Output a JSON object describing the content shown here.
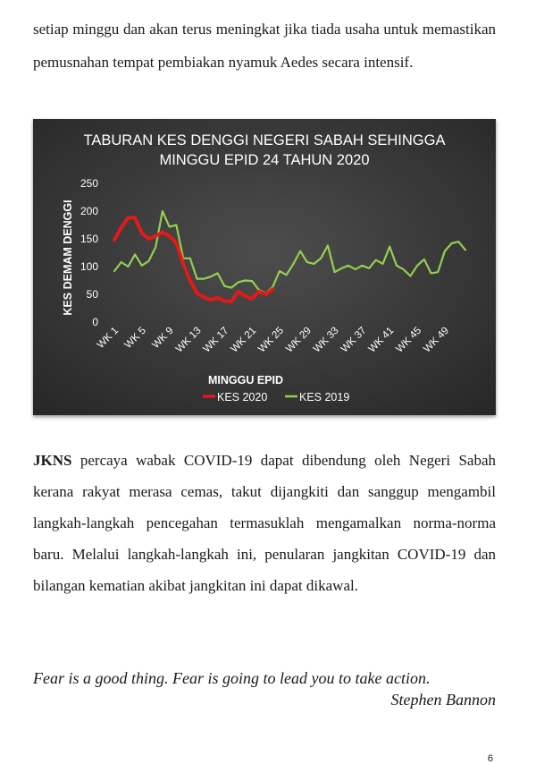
{
  "paragraph1": "setiap minggu dan akan terus meningkat jika tiada usaha untuk memastikan pemusnahan tempat pembiakan nyamuk Aedes secara intensif.",
  "paragraph2": {
    "org": "JKNS",
    "text": " percaya wabak COVID-19 dapat dibendung oleh Negeri Sabah kerana rakyat merasa cemas, takut dijangkiti dan sanggup mengambil langkah-langkah pencegahan termasuklah mengamalkan norma-norma baru.  Melalui langkah-langkah ini, penularan jangkitan COVID-19 dan bilangan kematian akibat jangkitan ini dapat dikawal."
  },
  "quote": {
    "text": "Fear is a good thing. Fear is going to lead you to take action.",
    "author": "Stephen Bannon"
  },
  "page_number": "6",
  "chart_data": {
    "type": "line",
    "title_line1": "TABURAN KES DENGGI NEGERI SABAH SEHINGGA",
    "title_line2": "MINGGU EPID 24 TAHUN 2020",
    "xlabel": "MINGGU EPID",
    "ylabel": "KES DEMAM DENGGI",
    "ylim": [
      0,
      250
    ],
    "yticks": [
      "0",
      "50",
      "100",
      "150",
      "200",
      "250"
    ],
    "grid": false,
    "legend_position": "bottom",
    "x_tick_labels": [
      "WK 1",
      "WK 5",
      "WK 9",
      "WK 13",
      "WK 17",
      "WK 21",
      "WK 25",
      "WK 29",
      "WK 33",
      "WK 37",
      "WK 41",
      "WK 45",
      "WK 49"
    ],
    "x_tick_weeks": [
      1,
      5,
      9,
      13,
      17,
      21,
      25,
      29,
      33,
      37,
      41,
      45,
      49
    ],
    "x_weeks_total": 52,
    "background": "#2b2b2b",
    "series": [
      {
        "name": "KES 2020",
        "color": "#e11a1a",
        "values": [
          148,
          170,
          188,
          188,
          160,
          150,
          155,
          162,
          155,
          143,
          105,
          75,
          52,
          45,
          40,
          44,
          38,
          37,
          55,
          47,
          42,
          55,
          50,
          59
        ]
      },
      {
        "name": "KES 2019",
        "color": "#92d050",
        "values": [
          92,
          108,
          100,
          122,
          102,
          110,
          135,
          200,
          172,
          175,
          115,
          115,
          78,
          78,
          82,
          88,
          65,
          62,
          72,
          75,
          74,
          58,
          52,
          63,
          92,
          85,
          105,
          128,
          108,
          105,
          115,
          138,
          90,
          97,
          102,
          95,
          102,
          97,
          112,
          105,
          136,
          102,
          95,
          83,
          102,
          113,
          88,
          90,
          128,
          142,
          145,
          130
        ]
      }
    ]
  }
}
